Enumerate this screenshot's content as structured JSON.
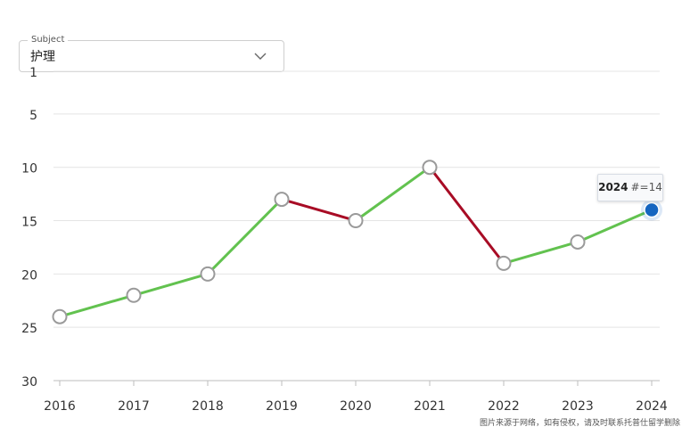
{
  "subject_select": {
    "legend": "Subject",
    "value": "护理",
    "icon": "chevron-down-icon"
  },
  "tooltip": {
    "year": "2024",
    "label": "#=14"
  },
  "watermark": "图片来源于网络，如有侵权，请及时联系托普仕留学删除",
  "colors": {
    "improved": "#62c24f",
    "declined": "#a80c25",
    "marker_fill": "#ffffff",
    "marker_stroke": "#9a9a9a",
    "highlight": "#1565c0",
    "grid": "#e4e4e4",
    "axis": "#bdbdbd"
  },
  "chart_data": {
    "type": "line",
    "title": "",
    "xlabel": "",
    "ylabel": "",
    "y_reversed": true,
    "ylim": [
      1,
      30
    ],
    "y_ticks": [
      "1",
      "5",
      "10",
      "15",
      "20",
      "25",
      "30"
    ],
    "y_tick_values": [
      1,
      5,
      10,
      15,
      20,
      25,
      30
    ],
    "x": [
      "2016",
      "2017",
      "2018",
      "2019",
      "2020",
      "2021",
      "2022",
      "2023",
      "2024"
    ],
    "series": [
      {
        "values": [
          24,
          22,
          20,
          13,
          15,
          10,
          19,
          17,
          14
        ]
      }
    ],
    "highlighted_point": "2024",
    "grid": true
  }
}
